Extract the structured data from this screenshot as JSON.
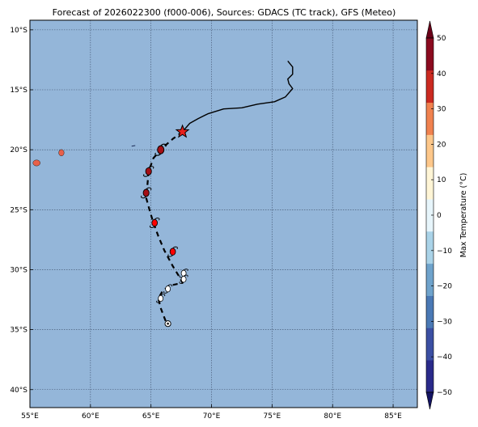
{
  "map": {
    "title": "Forecast of 2026022300 (f000-006), Sources: GDACS (TC track), GFS (Meteo)",
    "extent": {
      "lon": [
        55,
        87
      ],
      "lat": [
        -41.5,
        -9.2
      ]
    },
    "lat_ticks": [
      {
        "value": -10,
        "label": "10°S"
      },
      {
        "value": -15,
        "label": "15°S"
      },
      {
        "value": -20,
        "label": "20°S"
      },
      {
        "value": -25,
        "label": "25°S"
      },
      {
        "value": -30,
        "label": "30°S"
      },
      {
        "value": -35,
        "label": "35°S"
      },
      {
        "value": -40,
        "label": "40°S"
      }
    ],
    "lon_ticks": [
      {
        "value": 55,
        "label": "55°E"
      },
      {
        "value": 60,
        "label": "60°E"
      },
      {
        "value": 65,
        "label": "65°E"
      },
      {
        "value": 70,
        "label": "70°E"
      },
      {
        "value": 75,
        "label": "75°E"
      },
      {
        "value": 80,
        "label": "80°E"
      },
      {
        "value": 85,
        "label": "85°E"
      }
    ],
    "ocean_color": "#94b6d9",
    "islands": [
      {
        "name": "reunion",
        "lon": 55.55,
        "lat": -21.1,
        "rx_deg": 0.3,
        "ry_deg": 0.25,
        "color": "#e8604a"
      },
      {
        "name": "mauritius",
        "lon": 57.6,
        "lat": -20.25,
        "rx_deg": 0.22,
        "ry_deg": 0.27,
        "color": "#e8604a"
      }
    ],
    "past_track": [
      [
        76.3,
        -12.6
      ],
      [
        76.7,
        -13.1
      ],
      [
        76.7,
        -13.7
      ],
      [
        76.3,
        -14.1
      ],
      [
        76.4,
        -14.5
      ],
      [
        76.7,
        -14.9
      ],
      [
        76.1,
        -15.6
      ],
      [
        75.2,
        -16.0
      ],
      [
        73.8,
        -16.2
      ],
      [
        72.5,
        -16.5
      ],
      [
        71.0,
        -16.6
      ],
      [
        69.7,
        -17.0
      ],
      [
        68.9,
        -17.4
      ],
      [
        68.2,
        -17.8
      ],
      [
        67.6,
        -18.5
      ]
    ],
    "forecast_track": [
      [
        67.6,
        -18.5
      ],
      [
        66.8,
        -19.1
      ],
      [
        66.0,
        -19.8
      ],
      [
        65.2,
        -20.7
      ],
      [
        64.8,
        -21.8
      ],
      [
        64.7,
        -23.0
      ],
      [
        64.6,
        -24.0
      ],
      [
        64.9,
        -25.1
      ],
      [
        65.2,
        -26.1
      ],
      [
        65.6,
        -27.2
      ],
      [
        66.1,
        -28.4
      ],
      [
        66.8,
        -29.7
      ],
      [
        67.4,
        -30.7
      ],
      [
        67.6,
        -31.1
      ],
      [
        66.7,
        -31.3
      ],
      [
        66.0,
        -31.7
      ],
      [
        65.6,
        -32.4
      ],
      [
        65.8,
        -33.2
      ],
      [
        66.1,
        -34.0
      ],
      [
        66.3,
        -34.5
      ]
    ],
    "current_position": {
      "lon": 67.6,
      "lat": -18.5,
      "color": "#e8201c"
    },
    "storm_symbols": [
      {
        "lon": 65.8,
        "lat": -20.0,
        "fill": "#a50f15",
        "size": 1.0
      },
      {
        "lon": 64.8,
        "lat": -21.8,
        "fill": "#a50f15",
        "size": 0.9
      },
      {
        "lon": 64.6,
        "lat": -23.6,
        "fill": "#a50f15",
        "size": 0.9
      },
      {
        "lon": 65.3,
        "lat": -26.1,
        "fill": "#ff0000",
        "size": 0.85
      },
      {
        "lon": 66.8,
        "lat": -28.5,
        "fill": "#ff0000",
        "size": 0.85
      },
      {
        "lon": 67.7,
        "lat": -30.3,
        "fill": "#ffffff",
        "size": 0.75
      },
      {
        "lon": 67.7,
        "lat": -30.8,
        "fill": "#ffffff",
        "size": 0.75
      },
      {
        "lon": 66.4,
        "lat": -31.6,
        "fill": "#ffffff",
        "size": 0.75
      },
      {
        "lon": 65.8,
        "lat": -32.4,
        "fill": "#ffffff",
        "size": 0.75
      },
      {
        "lon": 66.4,
        "lat": -34.5,
        "fill": "#ffffff",
        "size": 0.8,
        "circle": true
      }
    ]
  },
  "colorbar": {
    "label": "Max Temperature (°C)",
    "min": -50,
    "max": 50,
    "tick_values": [
      -50,
      -40,
      -30,
      -20,
      -10,
      0,
      10,
      20,
      30,
      40,
      50
    ],
    "tick_labels": [
      "−50",
      "−40",
      "−30",
      "−20",
      "−10",
      "0",
      "10",
      "20",
      "30",
      "40",
      "50"
    ],
    "colors": [
      "#2a2a8a",
      "#3b4fa3",
      "#4a79b5",
      "#6fa3cc",
      "#aad3e8",
      "#e7f5fb",
      "#fff5d6",
      "#fdc78a",
      "#f0824f",
      "#cb2a21",
      "#8b0a1f"
    ],
    "under_color": "#141463",
    "over_color": "#6b0018"
  }
}
